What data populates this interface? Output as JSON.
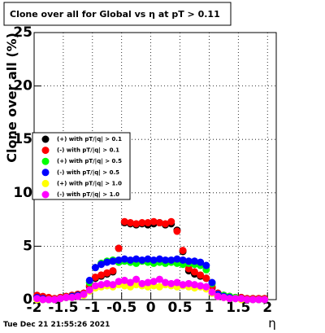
{
  "chart_data": {
    "type": "scatter",
    "title": "Clone  over all for Global vs   η at pT > 0.11",
    "x_label": "η",
    "y_label": "Clone  over all (%)",
    "timestamp": "Tue Dec 21 21:55:26 2021",
    "xlim": [
      -2,
      2.15
    ],
    "ylim": [
      0,
      25
    ],
    "xticks": [
      -2,
      -1.5,
      -1,
      -0.5,
      0,
      0.5,
      1,
      1.5,
      2
    ],
    "yticks": [
      0,
      5,
      10,
      15,
      20,
      25
    ],
    "grid": true,
    "legend": "left",
    "x": [
      -1.95,
      -1.85,
      -1.75,
      -1.65,
      -1.55,
      -1.45,
      -1.35,
      -1.25,
      -1.15,
      -1.05,
      -0.95,
      -0.85,
      -0.75,
      -0.65,
      -0.55,
      -0.45,
      -0.35,
      -0.25,
      -0.15,
      -0.05,
      0.05,
      0.15,
      0.25,
      0.35,
      0.45,
      0.55,
      0.65,
      0.75,
      0.85,
      0.95,
      1.05,
      1.15,
      1.25,
      1.35,
      1.45,
      1.55,
      1.65,
      1.75,
      1.85,
      1.95
    ],
    "series": [
      {
        "name": "(+) with pT/|q| > 0.1",
        "color": "#000000",
        "values": [
          0.3,
          0.2,
          0.1,
          0.1,
          0.2,
          0.3,
          0.4,
          0.5,
          0.6,
          1.2,
          2.0,
          2.2,
          2.4,
          2.6,
          4.8,
          7.2,
          7.1,
          7.0,
          7.1,
          7.0,
          7.1,
          7.2,
          7.0,
          7.1,
          6.5,
          4.5,
          2.7,
          2.4,
          2.2,
          2.0,
          1.1,
          0.6,
          0.4,
          0.3,
          0.2,
          0.2,
          0.1,
          0.1,
          0.1,
          0.1
        ]
      },
      {
        "name": "(-) with pT/|q| > 0.1",
        "color": "#ff0000",
        "values": [
          0.4,
          0.3,
          0.2,
          0.1,
          0.2,
          0.3,
          0.4,
          0.5,
          0.6,
          1.3,
          2.1,
          2.3,
          2.5,
          2.7,
          4.8,
          7.3,
          7.2,
          7.1,
          7.2,
          7.2,
          7.3,
          7.2,
          7.1,
          7.3,
          6.4,
          4.6,
          2.9,
          2.6,
          2.3,
          2.0,
          1.2,
          0.6,
          0.4,
          0.3,
          0.2,
          0.2,
          0.1,
          0.1,
          0.1,
          0.1
        ]
      },
      {
        "name": "(+) with pT/|q| > 0.5",
        "color": "#00ff00",
        "values": [
          0,
          0,
          0,
          0,
          0.1,
          0.2,
          0.3,
          0.4,
          0.5,
          1.6,
          3.0,
          3.4,
          3.6,
          3.7,
          3.5,
          3.6,
          3.5,
          3.4,
          3.6,
          3.5,
          3.4,
          3.5,
          3.4,
          3.5,
          3.4,
          3.3,
          3.4,
          3.3,
          3.2,
          2.8,
          1.5,
          0.5,
          0.4,
          0.3,
          0.2,
          0.1,
          0,
          0,
          0,
          0
        ]
      },
      {
        "name": "(-) with pT/|q| > 0.5",
        "color": "#0000ff",
        "values": [
          0.2,
          0.1,
          0,
          0,
          0.1,
          0.2,
          0.3,
          0.4,
          0.5,
          1.8,
          3.0,
          3.3,
          3.5,
          3.6,
          3.7,
          3.8,
          3.7,
          3.8,
          3.7,
          3.8,
          3.7,
          3.8,
          3.7,
          3.7,
          3.8,
          3.7,
          3.6,
          3.6,
          3.5,
          3.2,
          1.6,
          0.5,
          0.3,
          0.2,
          0.1,
          0.1,
          0,
          0,
          0,
          0
        ]
      },
      {
        "name": "(+) with pT/|q| > 1.0",
        "color": "#ffff00",
        "values": [
          0,
          0,
          0,
          0,
          0.1,
          0.2,
          0.2,
          0.3,
          0.4,
          0.8,
          1.1,
          1.2,
          1.3,
          1.2,
          1.4,
          1.3,
          1.2,
          1.4,
          1.3,
          1.2,
          1.3,
          1.2,
          1.4,
          1.3,
          1.2,
          1.3,
          1.2,
          1.1,
          1.2,
          1.0,
          0.6,
          0.3,
          0.2,
          0.1,
          0.1,
          0,
          0,
          0,
          0,
          0
        ]
      },
      {
        "name": "(-) with pT/|q| > 1.0",
        "color": "#ff00ff",
        "values": [
          0.1,
          0,
          0,
          0,
          0.1,
          0.2,
          0.2,
          0.3,
          0.5,
          0.9,
          1.3,
          1.4,
          1.5,
          1.4,
          1.7,
          1.8,
          1.6,
          1.9,
          1.5,
          1.6,
          1.7,
          1.9,
          1.6,
          1.5,
          1.6,
          1.4,
          1.5,
          1.4,
          1.3,
          1.2,
          0.7,
          0.3,
          0.2,
          0.1,
          0.1,
          0.1,
          0,
          0,
          0,
          0
        ]
      }
    ]
  }
}
